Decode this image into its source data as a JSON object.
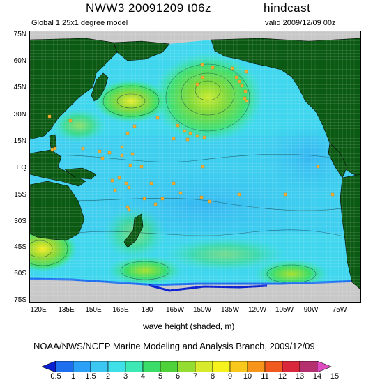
{
  "header": {
    "title_left": "NWW3 20091209 t06z",
    "title_right": "hindcast",
    "subtitle_left": "Global 1.25x1 degree model",
    "subtitle_right": "valid 2009/12/09 00z"
  },
  "axes": {
    "lat_labels": [
      "75N",
      "60N",
      "45N",
      "30N",
      "15N",
      "EQ",
      "15S",
      "30S",
      "45S",
      "60S",
      "75S"
    ],
    "lon_labels": [
      "120E",
      "135E",
      "150E",
      "165E",
      "180",
      "165W",
      "150W",
      "135W",
      "120W",
      "105W",
      "90W",
      "75W"
    ]
  },
  "map": {
    "xlabel": "wave height (shaded, m)",
    "colors": {
      "land": "#0b5a13",
      "ice": "#c8c8c8",
      "grid": "#ffffff",
      "buoy": "#f2b13a"
    }
  },
  "footer": {
    "credit": "NOAA/NWS/NCEP Marine Modeling and Analysis Branch, 2009/12/09"
  },
  "colorbar": {
    "labels": [
      "0.5",
      "1",
      "1.5",
      "2",
      "3",
      "4",
      "5",
      "6",
      "7",
      "8",
      "9",
      "10",
      "11",
      "12",
      "13",
      "14",
      "15"
    ],
    "colors": [
      "#0a1fd0",
      "#1e6ff0",
      "#2aa0f6",
      "#3cc6f2",
      "#3fe0e8",
      "#3ee8b4",
      "#3adc6a",
      "#4fd13a",
      "#95dc30",
      "#d8ea2c",
      "#f6f21e",
      "#f9c81c",
      "#f7941a",
      "#f05a1e",
      "#d9283c",
      "#b4306e",
      "#e04bc0"
    ]
  }
}
